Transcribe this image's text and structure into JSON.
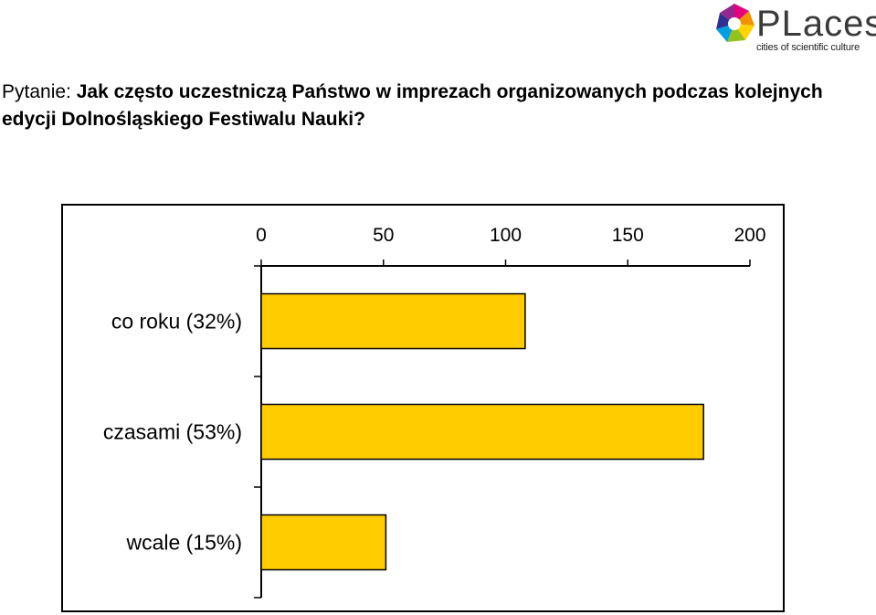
{
  "header": {
    "question_prefix": "Pytanie:",
    "question_text": "Jak często uczestniczą Państwo w imprezach organizowanych podczas kolejnych edycji Dolnośląskiego Festiwalu Nauki?"
  },
  "logo": {
    "brand": "PLaces",
    "tagline": "cities of scientific culture"
  },
  "colors": {
    "bar_fill": "#FFCC00",
    "axis": "#000000"
  },
  "chart_data": {
    "type": "bar",
    "orientation": "horizontal",
    "categories": [
      "co roku (32%)",
      "czasami (53%)",
      "wcale (15%)"
    ],
    "values": [
      108,
      181,
      51
    ],
    "xlim": [
      0,
      200
    ],
    "xticks": [
      0,
      50,
      100,
      150,
      200
    ],
    "xtick_labels": [
      "0",
      "50",
      "100",
      "150",
      "200"
    ],
    "x_axis_position": "top",
    "grid": false,
    "legend": "none"
  }
}
